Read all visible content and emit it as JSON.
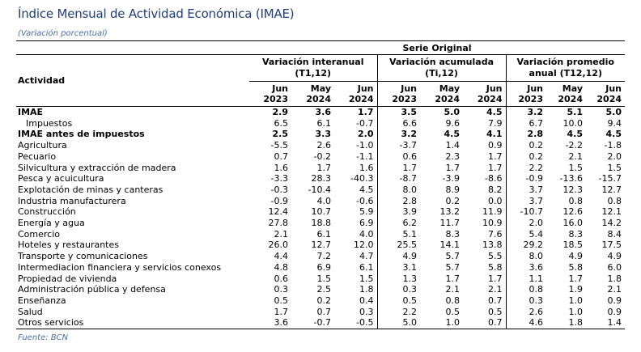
{
  "title": "Índice Mensual de Actividad Económica (IMAE)",
  "subtitle": "(Variación porcentual)",
  "source": "Fuente: BCN",
  "table": {
    "serie_header": "Serie Original",
    "activity_header": "Actividad",
    "groups": [
      {
        "label": "Variación interanual (T1,12)"
      },
      {
        "label": "Variación acumulada (Ti,12)"
      },
      {
        "label": "Variación promedio anual (T12,12)"
      }
    ],
    "periods": [
      {
        "month": "Jun",
        "year": "2023"
      },
      {
        "month": "May",
        "year": "2024"
      },
      {
        "month": "Jun",
        "year": "2024"
      }
    ],
    "rows": [
      {
        "label": "IMAE",
        "bold": true,
        "indent": false,
        "values": [
          "2.9",
          "3.6",
          "1.7",
          "3.5",
          "5.0",
          "4.5",
          "3.2",
          "5.1",
          "5.0"
        ]
      },
      {
        "label": "Impuestos",
        "bold": false,
        "indent": true,
        "values": [
          "6.5",
          "6.1",
          "-0.7",
          "6.6",
          "9.6",
          "7.9",
          "6.7",
          "10.0",
          "9.4"
        ]
      },
      {
        "label": "IMAE antes de impuestos",
        "bold": true,
        "indent": false,
        "values": [
          "2.5",
          "3.3",
          "2.0",
          "3.2",
          "4.5",
          "4.1",
          "2.8",
          "4.5",
          "4.5"
        ]
      },
      {
        "label": "Agricultura",
        "bold": false,
        "indent": false,
        "values": [
          "-5.5",
          "2.6",
          "-1.0",
          "-3.7",
          "1.4",
          "0.9",
          "0.2",
          "-2.2",
          "-1.8"
        ]
      },
      {
        "label": "Pecuario",
        "bold": false,
        "indent": false,
        "values": [
          "0.7",
          "-0.2",
          "-1.1",
          "0.6",
          "2.3",
          "1.7",
          "0.2",
          "2.1",
          "2.0"
        ]
      },
      {
        "label": "Silvicultura y extracción de madera",
        "bold": false,
        "indent": false,
        "values": [
          "1.6",
          "1.7",
          "1.6",
          "1.7",
          "1.7",
          "1.7",
          "2.2",
          "1.5",
          "1.5"
        ]
      },
      {
        "label": "Pesca y acuicultura",
        "bold": false,
        "indent": false,
        "values": [
          "-3.3",
          "28.3",
          "-40.3",
          "-8.7",
          "-3.9",
          "-8.6",
          "-0.9",
          "-13.6",
          "-15.7"
        ]
      },
      {
        "label": "Explotación de minas y canteras",
        "bold": false,
        "indent": false,
        "values": [
          "-0.3",
          "-10.4",
          "4.5",
          "8.0",
          "8.9",
          "8.2",
          "3.7",
          "12.3",
          "12.7"
        ]
      },
      {
        "label": "Industria manufacturera",
        "bold": false,
        "indent": false,
        "values": [
          "-0.9",
          "4.0",
          "-0.6",
          "2.8",
          "0.2",
          "0.0",
          "3.7",
          "0.8",
          "0.8"
        ]
      },
      {
        "label": "Construcción",
        "bold": false,
        "indent": false,
        "values": [
          "12.4",
          "10.7",
          "5.9",
          "3.9",
          "13.2",
          "11.9",
          "-10.7",
          "12.6",
          "12.1"
        ]
      },
      {
        "label": "Energía y agua",
        "bold": false,
        "indent": false,
        "values": [
          "27.8",
          "18.8",
          "6.9",
          "6.2",
          "11.7",
          "10.9",
          "2.0",
          "16.0",
          "14.2"
        ]
      },
      {
        "label": "Comercio",
        "bold": false,
        "indent": false,
        "values": [
          "2.1",
          "6.1",
          "4.0",
          "5.1",
          "8.3",
          "7.6",
          "5.4",
          "8.3",
          "8.4"
        ]
      },
      {
        "label": "Hoteles y restaurantes",
        "bold": false,
        "indent": false,
        "values": [
          "26.0",
          "12.7",
          "12.0",
          "25.5",
          "14.1",
          "13.8",
          "29.2",
          "18.5",
          "17.5"
        ]
      },
      {
        "label": "Transporte y comunicaciones",
        "bold": false,
        "indent": false,
        "values": [
          "4.4",
          "7.2",
          "4.7",
          "4.9",
          "5.7",
          "5.5",
          "8.0",
          "4.9",
          "4.9"
        ]
      },
      {
        "label": "Intermediacion financiera y servicios conexos",
        "bold": false,
        "indent": false,
        "values": [
          "4.8",
          "6.9",
          "6.1",
          "3.1",
          "5.7",
          "5.8",
          "3.6",
          "5.8",
          "6.0"
        ]
      },
      {
        "label": "Propiedad de vivienda",
        "bold": false,
        "indent": false,
        "values": [
          "0.6",
          "1.5",
          "1.5",
          "1.3",
          "1.7",
          "1.7",
          "1.1",
          "1.7",
          "1.8"
        ]
      },
      {
        "label": "Administración pública y defensa",
        "bold": false,
        "indent": false,
        "values": [
          "0.3",
          "2.5",
          "1.8",
          "0.3",
          "2.1",
          "2.1",
          "0.8",
          "1.9",
          "2.1"
        ]
      },
      {
        "label": "Enseñanza",
        "bold": false,
        "indent": false,
        "values": [
          "0.5",
          "0.2",
          "0.4",
          "0.5",
          "0.8",
          "0.7",
          "0.3",
          "1.0",
          "0.9"
        ]
      },
      {
        "label": "Salud",
        "bold": false,
        "indent": false,
        "values": [
          "1.7",
          "0.7",
          "0.3",
          "2.2",
          "0.5",
          "0.5",
          "2.6",
          "1.0",
          "0.9"
        ]
      },
      {
        "label": "Otros servicios",
        "bold": false,
        "indent": false,
        "values": [
          "3.6",
          "-0.7",
          "-0.5",
          "5.0",
          "1.0",
          "0.7",
          "4.6",
          "1.8",
          "1.4"
        ]
      }
    ]
  }
}
